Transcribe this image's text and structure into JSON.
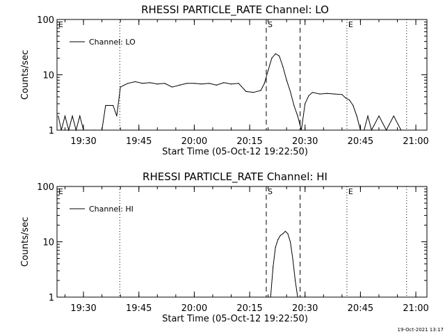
{
  "footer": {
    "timestamp": "19-Oct-2021 13:17"
  },
  "chart_data": [
    {
      "type": "line",
      "title": "RHESSI PARTICLE_RATE Channel: LO",
      "xlabel": "Start Time (05-Oct-12 19:22:50)",
      "ylabel": "Counts/sec",
      "yscale": "log",
      "xlim": [
        "19:22:50",
        "21:03:00"
      ],
      "ylim": [
        1,
        100
      ],
      "xticks": [
        "19:30",
        "19:45",
        "20:00",
        "20:15",
        "20:30",
        "20:45",
        "21:00"
      ],
      "yticks": [
        "1",
        "10",
        "100"
      ],
      "legend": {
        "label": "Channel: LO",
        "position": "top-left"
      },
      "markers": [
        {
          "label": "E",
          "time": "19:22:50",
          "style": "dotted"
        },
        {
          "label": "",
          "time": "19:39:50",
          "style": "dotted"
        },
        {
          "label": "S",
          "time": "20:19:30",
          "style": "dashed"
        },
        {
          "label": "",
          "time": "20:28:40",
          "style": "dashed"
        },
        {
          "label": "E",
          "time": "20:41:20",
          "style": "dotted"
        },
        {
          "label": "",
          "time": "20:57:30",
          "style": "dotted"
        }
      ],
      "series": [
        {
          "name": "Channel: LO",
          "x": [
            "19:23:10",
            "19:24:00",
            "19:25:00",
            "19:26:00",
            "19:27:00",
            "19:28:00",
            "19:29:00",
            "19:30:00",
            "19:31:00",
            "19:33:00",
            "19:35:00",
            "19:36:00",
            "19:37:00",
            "19:38:00",
            "19:39:00",
            "19:40:00",
            "19:41:00",
            "19:42:00",
            "19:44:00",
            "19:46:00",
            "19:48:00",
            "19:50:00",
            "19:52:00",
            "19:54:00",
            "19:56:00",
            "19:58:00",
            "20:00:00",
            "20:02:00",
            "20:04:00",
            "20:06:00",
            "20:08:00",
            "20:10:00",
            "20:12:00",
            "20:14:00",
            "20:16:00",
            "20:18:00",
            "20:19:00",
            "20:20:00",
            "20:21:00",
            "20:22:00",
            "20:23:00",
            "20:24:00",
            "20:25:00",
            "20:26:00",
            "20:27:00",
            "20:28:00",
            "20:29:00",
            "20:30:00",
            "20:31:00",
            "20:32:00",
            "20:34:00",
            "20:36:00",
            "20:38:00",
            "20:40:00",
            "20:41:00",
            "20:42:00",
            "20:43:00",
            "20:44:00",
            "20:45:00",
            "20:46:00",
            "20:47:00",
            "20:48:00",
            "20:50:00",
            "20:52:00",
            "20:54:00",
            "20:56:00"
          ],
          "y": [
            1.8,
            1,
            1.8,
            1,
            1.8,
            1,
            1.8,
            1,
            1,
            1,
            1,
            2.8,
            2.8,
            2.8,
            1.8,
            6,
            6.5,
            7,
            7.5,
            7,
            7.2,
            6.8,
            7,
            6,
            6.5,
            7,
            7,
            6.8,
            7,
            6.5,
            7.2,
            6.8,
            7,
            5,
            4.8,
            5.2,
            7,
            12,
            20,
            24,
            22,
            14,
            8,
            5,
            2.8,
            1.8,
            1,
            3,
            4.2,
            4.8,
            4.5,
            4.6,
            4.5,
            4.4,
            3.8,
            3.5,
            2.8,
            1.8,
            1,
            1,
            1.8,
            1,
            1.8,
            1,
            1.8,
            1
          ]
        }
      ]
    },
    {
      "type": "line",
      "title": "RHESSI PARTICLE_RATE Channel: HI",
      "xlabel": "Start Time (05-Oct-12 19:22:50)",
      "ylabel": "Counts/sec",
      "yscale": "log",
      "xlim": [
        "19:22:50",
        "21:03:00"
      ],
      "ylim": [
        1,
        100
      ],
      "xticks": [
        "19:30",
        "19:45",
        "20:00",
        "20:15",
        "20:30",
        "20:45",
        "21:00"
      ],
      "yticks": [
        "1",
        "10",
        "100"
      ],
      "legend": {
        "label": "Channel: HI",
        "position": "top-left"
      },
      "markers": [
        {
          "label": "E",
          "time": "19:22:50",
          "style": "dotted"
        },
        {
          "label": "",
          "time": "19:39:50",
          "style": "dotted"
        },
        {
          "label": "S",
          "time": "20:19:30",
          "style": "dashed"
        },
        {
          "label": "",
          "time": "20:28:40",
          "style": "dashed"
        },
        {
          "label": "E",
          "time": "20:41:20",
          "style": "dotted"
        },
        {
          "label": "",
          "time": "20:57:30",
          "style": "dotted"
        }
      ],
      "series": [
        {
          "name": "Channel: HI",
          "x": [
            "20:20:40",
            "20:21:20",
            "20:22:00",
            "20:22:40",
            "20:23:20",
            "20:24:00",
            "20:24:40",
            "20:25:20",
            "20:26:00",
            "20:26:40",
            "20:27:20",
            "20:28:00"
          ],
          "y": [
            1,
            3.5,
            8,
            11,
            13,
            14,
            15.5,
            14,
            10,
            5,
            2,
            1
          ]
        }
      ]
    }
  ]
}
